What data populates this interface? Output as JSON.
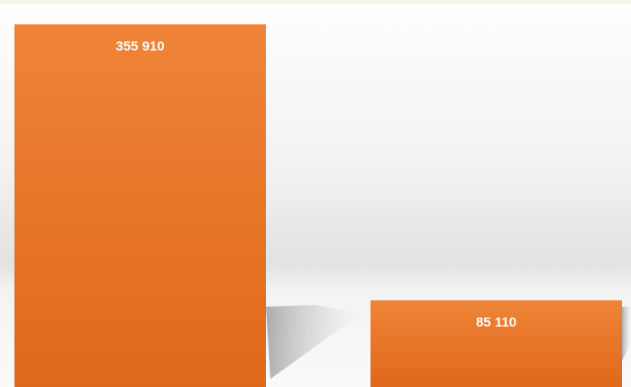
{
  "chart_data": {
    "type": "bar",
    "categories": [
      null,
      null
    ],
    "values": [
      355910,
      85110
    ],
    "value_labels": [
      "355 910",
      "85 110"
    ],
    "color": "#ec7a2c"
  }
}
